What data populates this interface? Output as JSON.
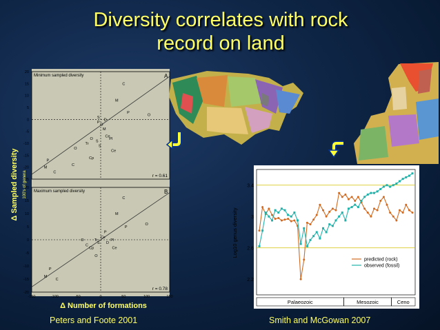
{
  "title_line1": "Diversity correlates with rock",
  "title_line2": "record on land",
  "credits": {
    "left": "Peters and Foote 2001",
    "right": "Smith and McGowan 2007"
  },
  "colors": {
    "title": "#ffff66",
    "predicted": "#d2691e",
    "observed": "#20b2aa",
    "plot_bg": "#ffffff",
    "scatter_bg": "#c8c8b4"
  },
  "chart_data": [
    {
      "type": "scatter",
      "panel_label": "A",
      "title": "Minimum sampled diversity",
      "r_label": "r = 0.61",
      "xlim": [
        -150,
        150
      ],
      "ylim": [
        -25,
        20
      ],
      "x_ticks": [
        "-150",
        "-100",
        "-50",
        "0",
        "50",
        "100",
        "150"
      ],
      "y_ticks": [
        "20",
        "15",
        "10",
        "5",
        "0",
        "-5",
        "-10",
        "-15",
        "-20",
        "-25"
      ],
      "points": [
        {
          "x": 50,
          "y": 15,
          "label": "C"
        },
        {
          "x": 35,
          "y": 8,
          "label": "M"
        },
        {
          "x": 60,
          "y": 3,
          "label": "P"
        },
        {
          "x": 105,
          "y": 2,
          "label": "O"
        },
        {
          "x": 2,
          "y": -2,
          "label": "O"
        },
        {
          "x": -5,
          "y": -1,
          "label": "P"
        },
        {
          "x": 8,
          "y": -4,
          "label": "M"
        },
        {
          "x": 15,
          "y": -7,
          "label": "Ce"
        },
        {
          "x": 22,
          "y": -8,
          "label": "Pl"
        },
        {
          "x": -20,
          "y": -8,
          "label": "O"
        },
        {
          "x": -30,
          "y": -10,
          "label": "Tr"
        },
        {
          "x": -55,
          "y": -12,
          "label": "O"
        },
        {
          "x": -8,
          "y": -9,
          "label": "S"
        },
        {
          "x": -2,
          "y": -11,
          "label": "S"
        },
        {
          "x": 28,
          "y": -13,
          "label": "Ce"
        },
        {
          "x": -20,
          "y": -16,
          "label": "Cp"
        },
        {
          "x": -115,
          "y": -17,
          "label": "P"
        },
        {
          "x": -120,
          "y": -20,
          "label": "M"
        },
        {
          "x": -60,
          "y": -19,
          "label": "C"
        },
        {
          "x": -100,
          "y": -22,
          "label": "C"
        },
        {
          "x": -5,
          "y": 1,
          "label": "S"
        },
        {
          "x": 10,
          "y": 0,
          "label": "D"
        }
      ]
    },
    {
      "type": "scatter",
      "panel_label": "B",
      "title": "Maximum sampled diversity",
      "r_label": "r = 0.78",
      "xlim": [
        -150,
        150
      ],
      "ylim": [
        -20,
        20
      ],
      "x_ticks": [
        "-150",
        "-100",
        "-50",
        "0",
        "50",
        "100",
        "150"
      ],
      "y_ticks": [
        "20",
        "15",
        "10",
        "5",
        "0",
        "-5",
        "-10",
        "-15",
        "-20"
      ],
      "points": [
        {
          "x": 50,
          "y": 16,
          "label": "C"
        },
        {
          "x": 35,
          "y": 10,
          "label": "M"
        },
        {
          "x": 55,
          "y": 5,
          "label": "P"
        },
        {
          "x": 100,
          "y": 6,
          "label": "O"
        },
        {
          "x": 10,
          "y": 3,
          "label": "P"
        },
        {
          "x": 5,
          "y": 1,
          "label": "Ce"
        },
        {
          "x": 25,
          "y": 0,
          "label": "Pl"
        },
        {
          "x": -10,
          "y": 0,
          "label": "Tr"
        },
        {
          "x": -40,
          "y": 0,
          "label": "O"
        },
        {
          "x": -5,
          "y": -1,
          "label": "S"
        },
        {
          "x": 15,
          "y": -1,
          "label": "D"
        },
        {
          "x": -30,
          "y": -2,
          "label": "C"
        },
        {
          "x": -20,
          "y": -3,
          "label": "Cp"
        },
        {
          "x": -110,
          "y": -11,
          "label": "P"
        },
        {
          "x": -120,
          "y": -14,
          "label": "M"
        },
        {
          "x": -95,
          "y": -15,
          "label": "C"
        },
        {
          "x": -10,
          "y": -6,
          "label": "O"
        },
        {
          "x": 30,
          "y": -3,
          "label": "Ce"
        }
      ]
    },
    {
      "type": "line",
      "ylabel": "Log10 genus diversity",
      "ylim": [
        2.0,
        3.6
      ],
      "y_ticks": [
        "3.4",
        "3",
        "2.6",
        "2.2"
      ],
      "eras": [
        "Palaeozoic",
        "Mesozoic",
        "Ceno"
      ],
      "series": [
        {
          "name": "predicted (rock)",
          "values": [
            2.82,
            3.12,
            3.03,
            3.1,
            3.02,
            2.97,
            2.98,
            2.95,
            2.96,
            2.97,
            2.94,
            2.95,
            2.88,
            2.2,
            2.45,
            2.92,
            2.9,
            2.96,
            3.02,
            3.15,
            3.08,
            3.0,
            3.06,
            3.1,
            3.08,
            3.3,
            3.25,
            3.28,
            3.22,
            3.25,
            3.2,
            3.25,
            3.18,
            3.1,
            3.05,
            3.0,
            3.1,
            3.08,
            3.2,
            3.25,
            3.15,
            3.05,
            3.0,
            2.95,
            3.08,
            3.05,
            3.15,
            3.08,
            3.05
          ]
        },
        {
          "name": "observed (fossil)",
          "values": [
            2.62,
            2.82,
            3.05,
            3.0,
            2.95,
            3.08,
            3.05,
            3.1,
            3.08,
            3.02,
            3.0,
            3.05,
            2.95,
            2.65,
            2.85,
            2.62,
            2.7,
            2.75,
            2.8,
            2.72,
            2.85,
            2.8,
            2.9,
            2.88,
            2.95,
            3.0,
            3.05,
            2.95,
            3.1,
            3.12,
            3.15,
            3.12,
            3.2,
            3.25,
            3.28,
            3.3,
            3.3,
            3.32,
            3.35,
            3.38,
            3.4,
            3.38,
            3.4,
            3.42,
            3.45,
            3.48,
            3.5,
            3.52,
            3.55
          ]
        }
      ]
    }
  ],
  "axis_labels": {
    "scatter_x": "Δ Number of formations",
    "scatter_y": "Δ Sampled diversity",
    "scatter_y_unit": "100's of genera"
  }
}
